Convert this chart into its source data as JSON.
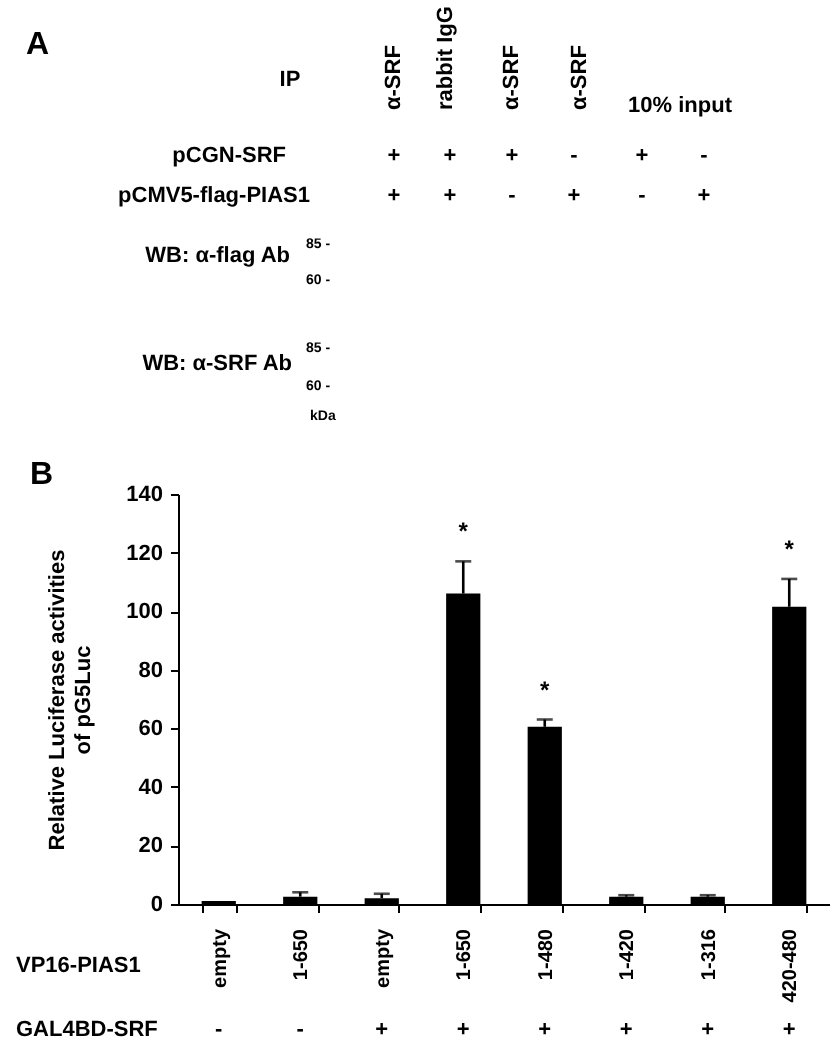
{
  "chart_data": [
    {
      "type": "other",
      "title": "A",
      "annotations": [
        "IP",
        "α-SRF",
        "rabbit IgG",
        "α-SRF",
        "α-SRF",
        "10% input",
        "pCGN-SRF",
        "+",
        "+",
        "+",
        "-",
        "+",
        "-",
        "pCMV5-flag-PIAS1",
        "+",
        "+",
        "-",
        "+",
        "-",
        "+",
        "WB: α-flag Ab",
        "85 -",
        "60 -",
        "WB: α-SRF Ab",
        "85 -",
        "60 -",
        "kDa"
      ]
    },
    {
      "type": "bar",
      "title": "B",
      "categories": [
        "empty",
        "1-650",
        "empty",
        "1-650",
        "1-480",
        "1-420",
        "1-316",
        "420-480"
      ],
      "xlabel": "VP16-PIAS1",
      "ylabel": "Relative Luciferase activities\nof pG5Luc",
      "values": [
        1,
        2.5,
        2,
        106,
        60.5,
        2.5,
        2.5,
        101.5
      ],
      "color": "#000000",
      "errors": [
        null,
        [
          2.5,
          4
        ],
        [
          2,
          3.5
        ],
        [
          106,
          117
        ],
        [
          60.5,
          63
        ],
        [
          2.5,
          3
        ],
        [
          2.5,
          3
        ],
        [
          101.5,
          111
        ]
      ],
      "value_labels": [
        null,
        null,
        null,
        "*",
        "*",
        null,
        null,
        "*"
      ],
      "ylim": [
        0,
        140
      ],
      "yticks": [
        0,
        20,
        40,
        60,
        80,
        100,
        120,
        140
      ],
      "annotations": [
        "GAL4BD-SRF",
        "-",
        "-",
        "+",
        "+",
        "+",
        "+",
        "+",
        "+"
      ]
    }
  ]
}
